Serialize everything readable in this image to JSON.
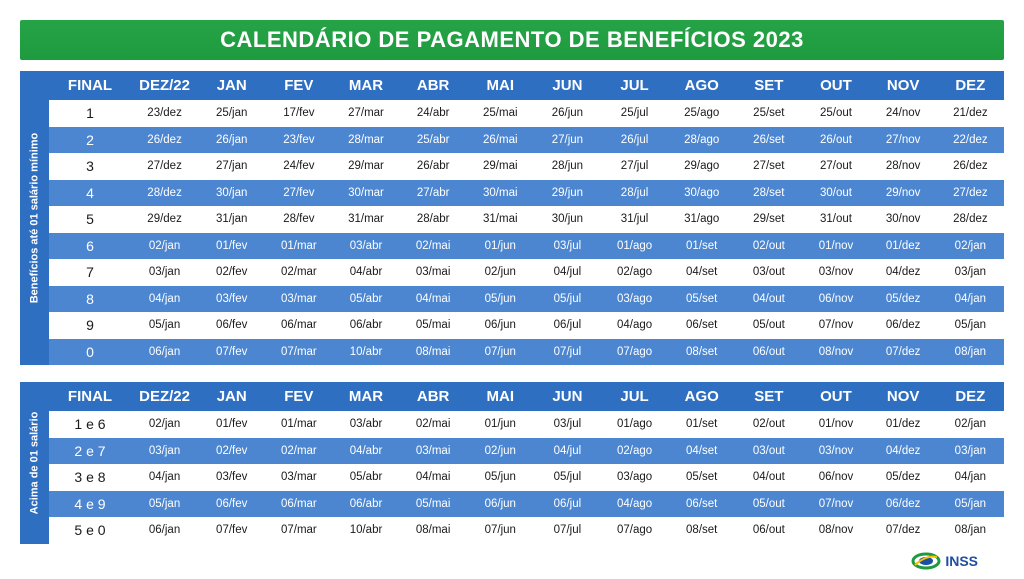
{
  "title": "CALENDÁRIO DE PAGAMENTO DE BENEFÍCIOS 2023",
  "colors": {
    "green": "#1e9a3f",
    "blue_header": "#2f6fc2",
    "blue_row": "#4c86d1"
  },
  "headers": [
    "FINAL",
    "DEZ/22",
    "JAN",
    "FEV",
    "MAR",
    "ABR",
    "MAI",
    "JUN",
    "JUL",
    "AGO",
    "SET",
    "OUT",
    "NOV",
    "DEZ"
  ],
  "section1": {
    "side_label": "Benefícios até 01 salário mínimo",
    "rows": [
      [
        "1",
        "23/dez",
        "25/jan",
        "17/fev",
        "27/mar",
        "24/abr",
        "25/mai",
        "26/jun",
        "25/jul",
        "25/ago",
        "25/set",
        "25/out",
        "24/nov",
        "21/dez"
      ],
      [
        "2",
        "26/dez",
        "26/jan",
        "23/fev",
        "28/mar",
        "25/abr",
        "26/mai",
        "27/jun",
        "26/jul",
        "28/ago",
        "26/set",
        "26/out",
        "27/nov",
        "22/dez"
      ],
      [
        "3",
        "27/dez",
        "27/jan",
        "24/fev",
        "29/mar",
        "26/abr",
        "29/mai",
        "28/jun",
        "27/jul",
        "29/ago",
        "27/set",
        "27/out",
        "28/nov",
        "26/dez"
      ],
      [
        "4",
        "28/dez",
        "30/jan",
        "27/fev",
        "30/mar",
        "27/abr",
        "30/mai",
        "29/jun",
        "28/jul",
        "30/ago",
        "28/set",
        "30/out",
        "29/nov",
        "27/dez"
      ],
      [
        "5",
        "29/dez",
        "31/jan",
        "28/fev",
        "31/mar",
        "28/abr",
        "31/mai",
        "30/jun",
        "31/jul",
        "31/ago",
        "29/set",
        "31/out",
        "30/nov",
        "28/dez"
      ],
      [
        "6",
        "02/jan",
        "01/fev",
        "01/mar",
        "03/abr",
        "02/mai",
        "01/jun",
        "03/jul",
        "01/ago",
        "01/set",
        "02/out",
        "01/nov",
        "01/dez",
        "02/jan"
      ],
      [
        "7",
        "03/jan",
        "02/fev",
        "02/mar",
        "04/abr",
        "03/mai",
        "02/jun",
        "04/jul",
        "02/ago",
        "04/set",
        "03/out",
        "03/nov",
        "04/dez",
        "03/jan"
      ],
      [
        "8",
        "04/jan",
        "03/fev",
        "03/mar",
        "05/abr",
        "04/mai",
        "05/jun",
        "05/jul",
        "03/ago",
        "05/set",
        "04/out",
        "06/nov",
        "05/dez",
        "04/jan"
      ],
      [
        "9",
        "05/jan",
        "06/fev",
        "06/mar",
        "06/abr",
        "05/mai",
        "06/jun",
        "06/jul",
        "04/ago",
        "06/set",
        "05/out",
        "07/nov",
        "06/dez",
        "05/jan"
      ],
      [
        "0",
        "06/jan",
        "07/fev",
        "07/mar",
        "10/abr",
        "08/mai",
        "07/jun",
        "07/jul",
        "07/ago",
        "08/set",
        "06/out",
        "08/nov",
        "07/dez",
        "08/jan"
      ]
    ]
  },
  "section2": {
    "side_label": "Acima de 01 salário",
    "rows": [
      [
        "1 e 6",
        "02/jan",
        "01/fev",
        "01/mar",
        "03/abr",
        "02/mai",
        "01/jun",
        "03/jul",
        "01/ago",
        "01/set",
        "02/out",
        "01/nov",
        "01/dez",
        "02/jan"
      ],
      [
        "2 e 7",
        "03/jan",
        "02/fev",
        "02/mar",
        "04/abr",
        "03/mai",
        "02/jun",
        "04/jul",
        "02/ago",
        "04/set",
        "03/out",
        "03/nov",
        "04/dez",
        "03/jan"
      ],
      [
        "3 e 8",
        "04/jan",
        "03/fev",
        "03/mar",
        "05/abr",
        "04/mai",
        "05/jun",
        "05/jul",
        "03/ago",
        "05/set",
        "04/out",
        "06/nov",
        "05/dez",
        "04/jan"
      ],
      [
        "4 e 9",
        "05/jan",
        "06/fev",
        "06/mar",
        "06/abr",
        "05/mai",
        "06/jun",
        "06/jul",
        "04/ago",
        "06/set",
        "05/out",
        "07/nov",
        "06/dez",
        "05/jan"
      ],
      [
        "5 e 0",
        "06/jan",
        "07/fev",
        "07/mar",
        "10/abr",
        "08/mai",
        "07/jun",
        "07/jul",
        "07/ago",
        "08/set",
        "06/out",
        "08/nov",
        "07/dez",
        "08/jan"
      ]
    ]
  },
  "logo": {
    "text": "INSS",
    "icon": "inss-logo-icon"
  }
}
